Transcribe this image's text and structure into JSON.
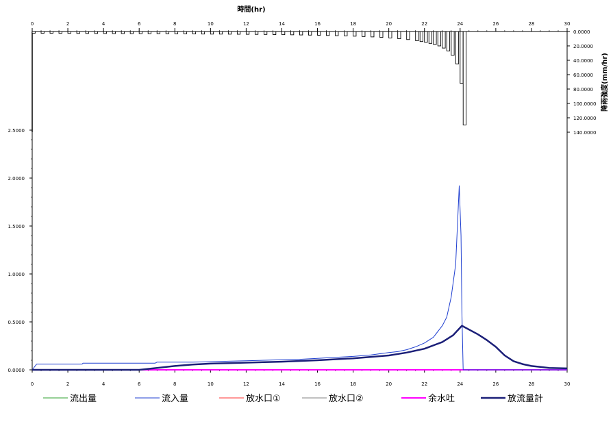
{
  "chart_data": [
    {
      "type": "bar",
      "title": "時間(hr)",
      "xlabel": "時間(hr)",
      "ylabel": "降雨強度(mm/hr)",
      "xlim": [
        0,
        30
      ],
      "ylim": [
        0,
        140
      ],
      "y_inverted": true,
      "x_axis_position": "top",
      "y_axis_position": "right",
      "x_ticks": [
        0,
        2,
        4,
        6,
        8,
        10,
        12,
        14,
        16,
        18,
        20,
        22,
        24,
        26,
        28,
        30
      ],
      "x_tick_labels": [
        "0",
        "2",
        "4",
        "6",
        "8",
        "10",
        "12",
        "14",
        "16",
        "18",
        "20",
        "22",
        "24",
        "26",
        "28",
        "30"
      ],
      "y_ticks": [
        0,
        20,
        40,
        60,
        80,
        100,
        120,
        140
      ],
      "y_tick_labels": [
        "0.0000",
        "20.0000",
        "40.0000",
        "60.0000",
        "80.0000",
        "100.0000",
        "120.0000",
        "140.0000"
      ],
      "bar_width_hr": 0.1667,
      "values": [
        {
          "x": 0.0,
          "y": 2.5
        },
        {
          "x": 0.5,
          "y": 2.5
        },
        {
          "x": 1.0,
          "y": 2.5
        },
        {
          "x": 1.5,
          "y": 2.6
        },
        {
          "x": 2.0,
          "y": 2.6
        },
        {
          "x": 2.5,
          "y": 2.7
        },
        {
          "x": 3.0,
          "y": 2.7
        },
        {
          "x": 3.5,
          "y": 2.8
        },
        {
          "x": 4.0,
          "y": 2.8
        },
        {
          "x": 4.5,
          "y": 2.9
        },
        {
          "x": 5.0,
          "y": 2.9
        },
        {
          "x": 5.5,
          "y": 3.0
        },
        {
          "x": 6.0,
          "y": 3.0
        },
        {
          "x": 6.5,
          "y": 3.1
        },
        {
          "x": 7.0,
          "y": 3.1
        },
        {
          "x": 7.5,
          "y": 3.2
        },
        {
          "x": 8.0,
          "y": 3.3
        },
        {
          "x": 8.5,
          "y": 3.3
        },
        {
          "x": 9.0,
          "y": 3.4
        },
        {
          "x": 9.5,
          "y": 3.5
        },
        {
          "x": 10.0,
          "y": 3.6
        },
        {
          "x": 10.5,
          "y": 3.6
        },
        {
          "x": 11.0,
          "y": 3.7
        },
        {
          "x": 11.5,
          "y": 3.8
        },
        {
          "x": 12.0,
          "y": 3.9
        },
        {
          "x": 12.5,
          "y": 4.0
        },
        {
          "x": 13.0,
          "y": 4.1
        },
        {
          "x": 13.5,
          "y": 4.3
        },
        {
          "x": 14.0,
          "y": 4.4
        },
        {
          "x": 14.5,
          "y": 4.6
        },
        {
          "x": 15.0,
          "y": 4.8
        },
        {
          "x": 15.5,
          "y": 5.0
        },
        {
          "x": 16.0,
          "y": 5.2
        },
        {
          "x": 16.5,
          "y": 5.5
        },
        {
          "x": 17.0,
          "y": 5.8
        },
        {
          "x": 17.5,
          "y": 6.1
        },
        {
          "x": 18.0,
          "y": 6.5
        },
        {
          "x": 18.5,
          "y": 7.0
        },
        {
          "x": 19.0,
          "y": 7.5
        },
        {
          "x": 19.5,
          "y": 8.2
        },
        {
          "x": 20.0,
          "y": 9.0
        },
        {
          "x": 20.5,
          "y": 10.0
        },
        {
          "x": 21.0,
          "y": 11.2
        },
        {
          "x": 21.5,
          "y": 12.8
        },
        {
          "x": 21.75,
          "y": 14.0
        },
        {
          "x": 22.0,
          "y": 15.0
        },
        {
          "x": 22.25,
          "y": 16.5
        },
        {
          "x": 22.5,
          "y": 18.0
        },
        {
          "x": 22.75,
          "y": 20.0
        },
        {
          "x": 23.0,
          "y": 23.0
        },
        {
          "x": 23.25,
          "y": 27.0
        },
        {
          "x": 23.5,
          "y": 33.0
        },
        {
          "x": 23.75,
          "y": 45.0
        },
        {
          "x": 24.0,
          "y": 72.0
        },
        {
          "x": 24.17,
          "y": 130.0
        }
      ]
    },
    {
      "type": "line",
      "xlim": [
        0,
        30
      ],
      "ylim": [
        0,
        2.5
      ],
      "x_ticks": [
        0,
        2,
        4,
        6,
        8,
        10,
        12,
        14,
        16,
        18,
        20,
        22,
        24,
        26,
        28,
        30
      ],
      "x_tick_labels": [
        "0",
        "2",
        "4",
        "6",
        "8",
        "10",
        "12",
        "14",
        "16",
        "18",
        "20",
        "22",
        "24",
        "26",
        "28",
        "30"
      ],
      "y_ticks": [
        0,
        0.5,
        1.0,
        1.5,
        2.0,
        2.5
      ],
      "y_tick_labels": [
        "0.0000",
        "0.5000",
        "1.0000",
        "1.5000",
        "2.0000",
        "2.5000"
      ],
      "grid": false,
      "legend_position": "bottom",
      "series": [
        {
          "name": "流出量",
          "color": "#2ca02c",
          "stroke_width": 1,
          "points": [
            [
              0,
              0
            ],
            [
              30,
              0
            ]
          ]
        },
        {
          "name": "流入量",
          "color": "#1f3fd0",
          "stroke_width": 1,
          "points": [
            [
              0,
              0
            ],
            [
              0.25,
              0.06
            ],
            [
              1,
              0.06
            ],
            [
              2.8,
              0.06
            ],
            [
              2.85,
              0.07
            ],
            [
              4,
              0.07
            ],
            [
              6,
              0.07
            ],
            [
              6.9,
              0.07
            ],
            [
              7,
              0.08
            ],
            [
              8,
              0.08
            ],
            [
              9,
              0.08
            ],
            [
              10,
              0.085
            ],
            [
              11,
              0.09
            ],
            [
              12,
              0.095
            ],
            [
              13,
              0.1
            ],
            [
              14,
              0.105
            ],
            [
              15,
              0.11
            ],
            [
              16,
              0.12
            ],
            [
              17,
              0.13
            ],
            [
              18,
              0.14
            ],
            [
              19,
              0.155
            ],
            [
              20,
              0.18
            ],
            [
              20.5,
              0.19
            ],
            [
              21,
              0.21
            ],
            [
              21.5,
              0.24
            ],
            [
              22,
              0.28
            ],
            [
              22.5,
              0.34
            ],
            [
              23,
              0.46
            ],
            [
              23.25,
              0.55
            ],
            [
              23.5,
              0.76
            ],
            [
              23.75,
              1.1
            ],
            [
              23.95,
              1.92
            ],
            [
              24.05,
              1.4
            ],
            [
              24.1,
              0.6
            ],
            [
              24.17,
              0.0
            ],
            [
              30,
              0.0
            ]
          ]
        },
        {
          "name": "放水口①",
          "color": "#ff3030",
          "stroke_width": 1,
          "points": [
            [
              0,
              0
            ],
            [
              30,
              0
            ]
          ]
        },
        {
          "name": "放水口②",
          "color": "#808080",
          "stroke_width": 1,
          "points": [
            [
              0,
              0
            ],
            [
              6,
              0
            ],
            [
              7,
              0.02
            ],
            [
              8,
              0.04
            ],
            [
              9,
              0.055
            ],
            [
              10,
              0.065
            ],
            [
              11,
              0.07
            ],
            [
              12,
              0.075
            ],
            [
              14,
              0.085
            ],
            [
              16,
              0.1
            ],
            [
              18,
              0.12
            ],
            [
              20,
              0.15
            ],
            [
              21,
              0.18
            ],
            [
              22,
              0.22
            ],
            [
              23,
              0.29
            ],
            [
              23.6,
              0.36
            ],
            [
              24.1,
              0.46
            ],
            [
              25,
              0.37
            ],
            [
              25.5,
              0.31
            ],
            [
              26,
              0.24
            ],
            [
              26.5,
              0.15
            ],
            [
              27,
              0.09
            ],
            [
              27.5,
              0.06
            ],
            [
              28,
              0.04
            ],
            [
              28.5,
              0.03
            ],
            [
              29,
              0.02
            ],
            [
              30,
              0.015
            ]
          ]
        },
        {
          "name": "余水吐",
          "color": "#ff00ff",
          "stroke_width": 2,
          "points": [
            [
              0,
              0
            ],
            [
              30,
              0
            ]
          ]
        },
        {
          "name": "放流量計",
          "color": "#1b1f78",
          "stroke_width": 2.5,
          "points": [
            [
              0,
              0
            ],
            [
              6,
              0
            ],
            [
              7,
              0.02
            ],
            [
              8,
              0.04
            ],
            [
              9,
              0.055
            ],
            [
              10,
              0.065
            ],
            [
              11,
              0.07
            ],
            [
              12,
              0.075
            ],
            [
              14,
              0.085
            ],
            [
              16,
              0.1
            ],
            [
              18,
              0.12
            ],
            [
              20,
              0.15
            ],
            [
              21,
              0.18
            ],
            [
              22,
              0.22
            ],
            [
              23,
              0.29
            ],
            [
              23.6,
              0.36
            ],
            [
              24.1,
              0.46
            ],
            [
              25,
              0.37
            ],
            [
              25.5,
              0.31
            ],
            [
              26,
              0.24
            ],
            [
              26.5,
              0.15
            ],
            [
              27,
              0.09
            ],
            [
              27.5,
              0.06
            ],
            [
              28,
              0.04
            ],
            [
              28.5,
              0.03
            ],
            [
              29,
              0.02
            ],
            [
              30,
              0.015
            ]
          ]
        }
      ]
    }
  ]
}
